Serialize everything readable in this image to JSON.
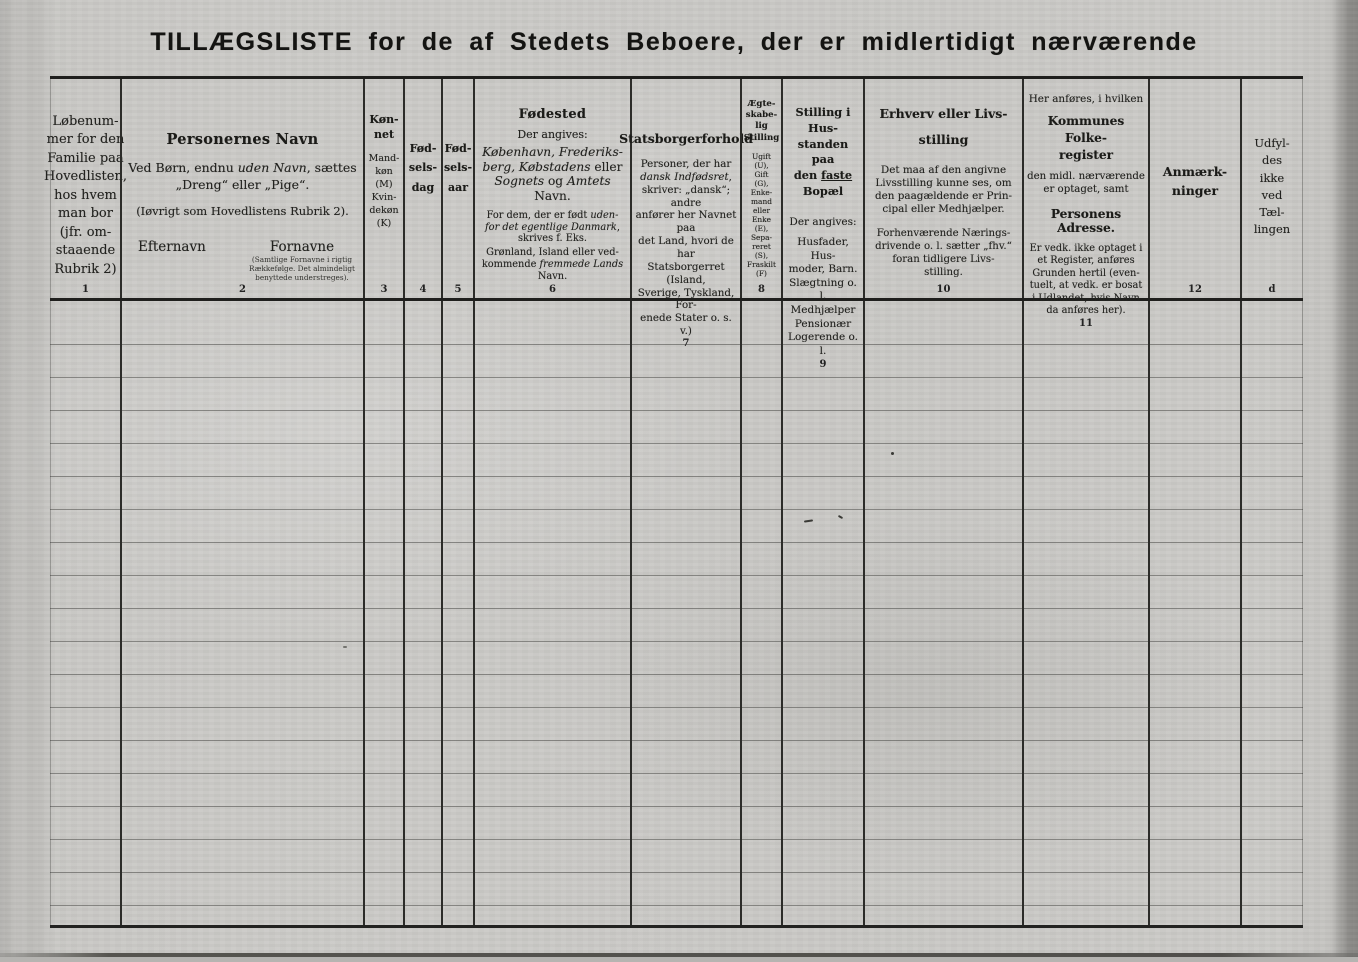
{
  "title": "TILLÆGSLISTE for de af Stedets Beboere, der er midlertidigt nærværende",
  "paper_color": "#c9c8c5",
  "ink_color": "#1d1d1a",
  "columns": {
    "c1": {
      "number": "1",
      "body": "Løbenum-\nmer for den\nFamilie paa\nHovedlisten,\nhos hvem\nman bor\n(jfr. om-\nstaaende\nRubrik 2)"
    },
    "c2": {
      "number": "2",
      "title": "Personernes Navn",
      "line1": [
        {
          "t": "Ved Børn, endnu "
        },
        {
          "t": "uden Navn",
          "i": 1
        },
        {
          "t": ", sættes"
        }
      ],
      "line2": "„Dreng“ eller „Pige“.",
      "line3": "(Iøvrigt som Hovedlistens Rubrik 2).",
      "efternavn": "Efternavn",
      "fornavne": "Fornavne",
      "note": "(Samtlige Fornavne i rigtig\nRækkefølge. Det almindeligt\nbenyttede understreges)."
    },
    "c3": {
      "number": "3",
      "title": "Køn-\nnet",
      "body": "Mand-\nkøn\n(M)\nKvin-\ndekøn\n(K)"
    },
    "c4": {
      "number": "4",
      "title": "Fød-\nsels-\ndag"
    },
    "c5": {
      "number": "5",
      "title": "Fød-\nsels-\naar"
    },
    "c6": {
      "number": "6",
      "title": "Fødested",
      "sub": "Der angives:",
      "p1": [
        {
          "t": "København, Frederiks-\nberg, Købstadens",
          "i": 1
        },
        {
          "t": " eller\n"
        },
        {
          "t": "Sognets",
          "i": 1
        },
        {
          "t": " og "
        },
        {
          "t": "Amtets",
          "i": 1
        },
        {
          "t": " Navn."
        }
      ],
      "p2": [
        {
          "t": "For dem, der er født "
        },
        {
          "t": "uden-\nfor det egentlige Danmark",
          "i": 1
        },
        {
          "t": ",\nskrives f. Eks."
        }
      ],
      "p3": [
        {
          "t": "Grønland, Island eller ved-\nkommende "
        },
        {
          "t": "fremmede Lands",
          "i": 1
        },
        {
          "t": "\nNavn."
        }
      ]
    },
    "c7": {
      "number": "7",
      "title": "Statsborgerforhold",
      "p": [
        {
          "t": "Personer, der har\n"
        },
        {
          "t": "dansk Indfødsret",
          "i": 1
        },
        {
          "t": ",\nskriver: „dansk“; andre\nanfører her Navnet paa\ndet Land, hvori de har\nStatsborgerret (Island,\nSverige, Tyskland, For-\nenede Stater o. s. v.)"
        }
      ]
    },
    "c8": {
      "number": "8",
      "title": "Ægte-\nskabe-\nlig\nStilling",
      "body": "Ugift\n(U),\nGift\n(G),\nEnke-\nmand\neller\nEnke\n(E),\nSepa-\nreret\n(S),\nFraskilt\n(F)"
    },
    "c9": {
      "number": "9",
      "title": [
        {
          "t": "Stilling i Hus-\nstanden paa\nden "
        },
        {
          "t": "faste",
          "u": 1
        },
        {
          "t": "\nBopæl"
        }
      ],
      "sub": "Der angives:",
      "body": "Husfader, Hus-\nmoder, Barn.\nSlægtning o. l.\nMedhjælper\nPensionær\nLogerende o. l."
    },
    "c10": {
      "number": "10",
      "title": "Erhverv eller Livs-\nstilling",
      "p1": "Det maa af den angivne\nLivsstilling kunne ses, om\nden paagældende er Prin-\ncipal eller Medhjælper.",
      "p2": "Forhenværende Nærings-\ndrivende o. l. sætter „fhv.“\nforan tidligere Livs-\nstilling."
    },
    "c11": {
      "number": "11",
      "pre": "Her anføres, i hvilken",
      "title1": "Kommunes Folke-\nregister",
      "mid": "den midl. nærværende\ner optaget, samt",
      "title2": "Personens Adresse.",
      "p": "Er vedk. ikke optaget i\net Register, anføres\nGrunden hertil (even-\ntuelt, at vedk. er bosat\ni Udlandet, hvis Navn\nda anføres her)."
    },
    "c12": {
      "number": "12",
      "title": "Anmærk-\nninger"
    },
    "cd": {
      "number": "d",
      "body": "Udfyl-\ndes\nikke\nved\nTæl-\nlingen"
    }
  }
}
